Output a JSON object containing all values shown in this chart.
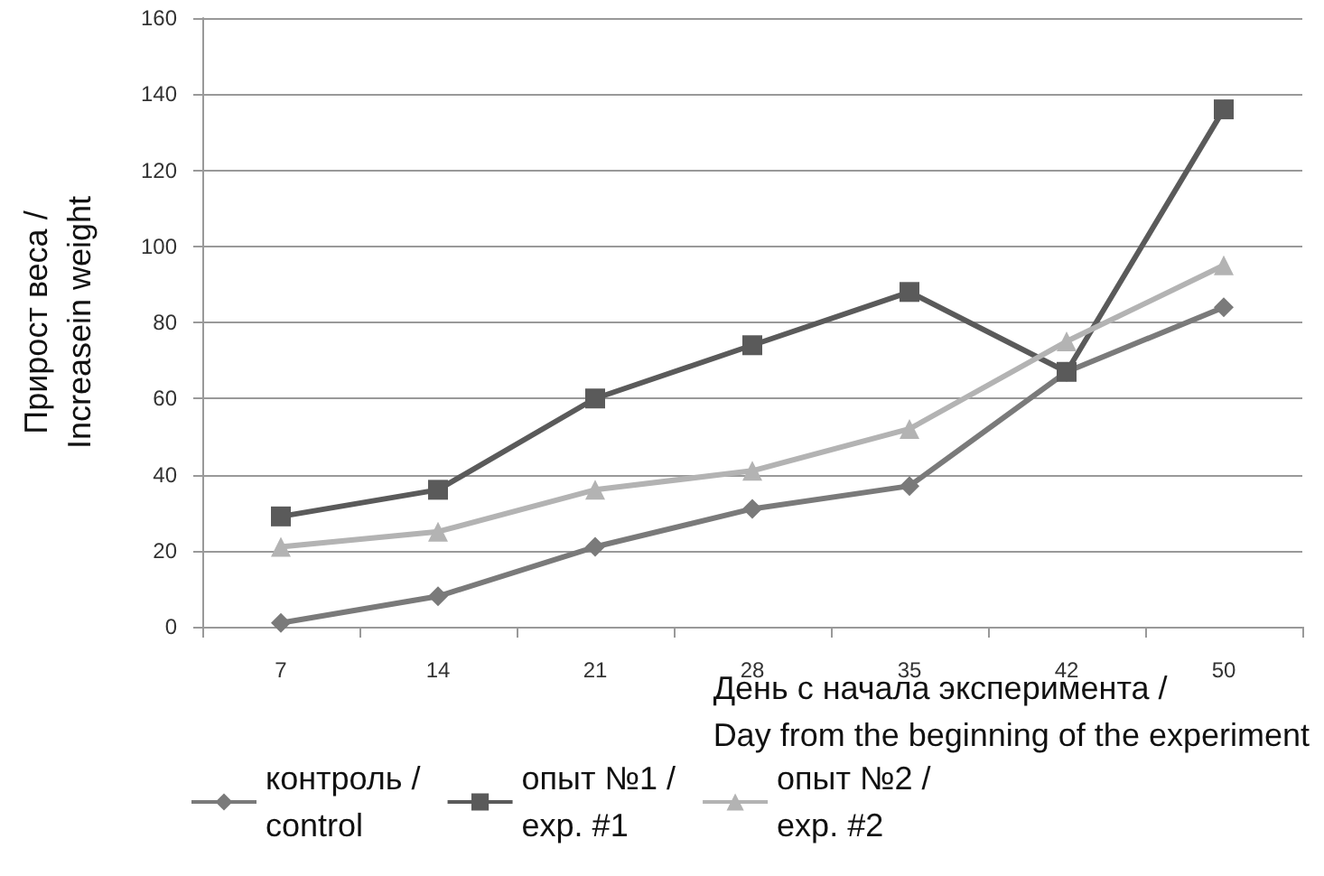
{
  "chart_data": {
    "type": "line",
    "xlabel": "День с начала эксперимента / Day from the beginning of the experiment",
    "ylabel": "Прирост веса / Increasein weight",
    "categories": [
      "7",
      "14",
      "21",
      "28",
      "35",
      "42",
      "50"
    ],
    "series": [
      {
        "name": "контроль / control",
        "color": "#7a7a7a",
        "marker": "diamond",
        "values": [
          1,
          8,
          21,
          31,
          37,
          67,
          84
        ]
      },
      {
        "name": "опыт №1 / exp. #1",
        "color": "#5a5a5a",
        "marker": "square",
        "values": [
          29,
          36,
          60,
          74,
          88,
          67,
          136
        ]
      },
      {
        "name": "опыт №2 / exp. #2",
        "color": "#b3b3b3",
        "marker": "triangle",
        "values": [
          21,
          25,
          36,
          41,
          52,
          75,
          95
        ]
      }
    ],
    "ylim": [
      0,
      160
    ],
    "yticks": [
      0,
      20,
      40,
      60,
      80,
      100,
      120,
      140,
      160
    ],
    "grid": "y",
    "legend": "bottom left",
    "line_style": "solid"
  }
}
